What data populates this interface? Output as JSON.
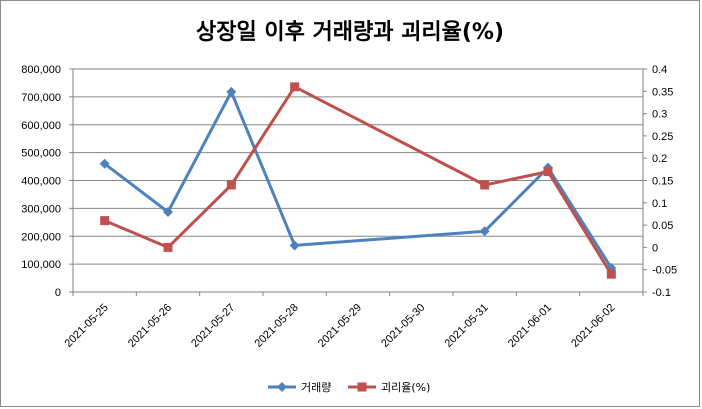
{
  "chart_data": {
    "type": "line",
    "title": "상장일 이후 거래량과 괴리율(%)",
    "categories": [
      "2021-05-25",
      "2021-05-26",
      "2021-05-27",
      "2021-05-28",
      "2021-05-29",
      "2021-05-30",
      "2021-05-31",
      "2021-06-01",
      "2021-06-02"
    ],
    "series": [
      {
        "name": "거래량",
        "axis": "left",
        "color": "#4f81bd",
        "marker": "diamond",
        "values": [
          460000,
          287000,
          718000,
          167000,
          null,
          null,
          218000,
          446000,
          86000
        ]
      },
      {
        "name": "괴리율(%)",
        "axis": "right",
        "color": "#c0504d",
        "marker": "square",
        "values": [
          0.06,
          0.0,
          0.14,
          0.36,
          null,
          null,
          0.14,
          0.17,
          -0.06
        ]
      }
    ],
    "y_left": {
      "min": 0,
      "max": 800000,
      "step": 100000,
      "ticks": [
        "0",
        "100,000",
        "200,000",
        "300,000",
        "400,000",
        "500,000",
        "600,000",
        "700,000",
        "800,000"
      ]
    },
    "y_right": {
      "min": -0.1,
      "max": 0.4,
      "step": 0.05,
      "ticks": [
        "-0.1",
        "-0.05",
        "0",
        "0.05",
        "0.1",
        "0.15",
        "0.2",
        "0.25",
        "0.3",
        "0.35",
        "0.4"
      ]
    },
    "grid": "horizontal",
    "legend_position": "bottom"
  }
}
